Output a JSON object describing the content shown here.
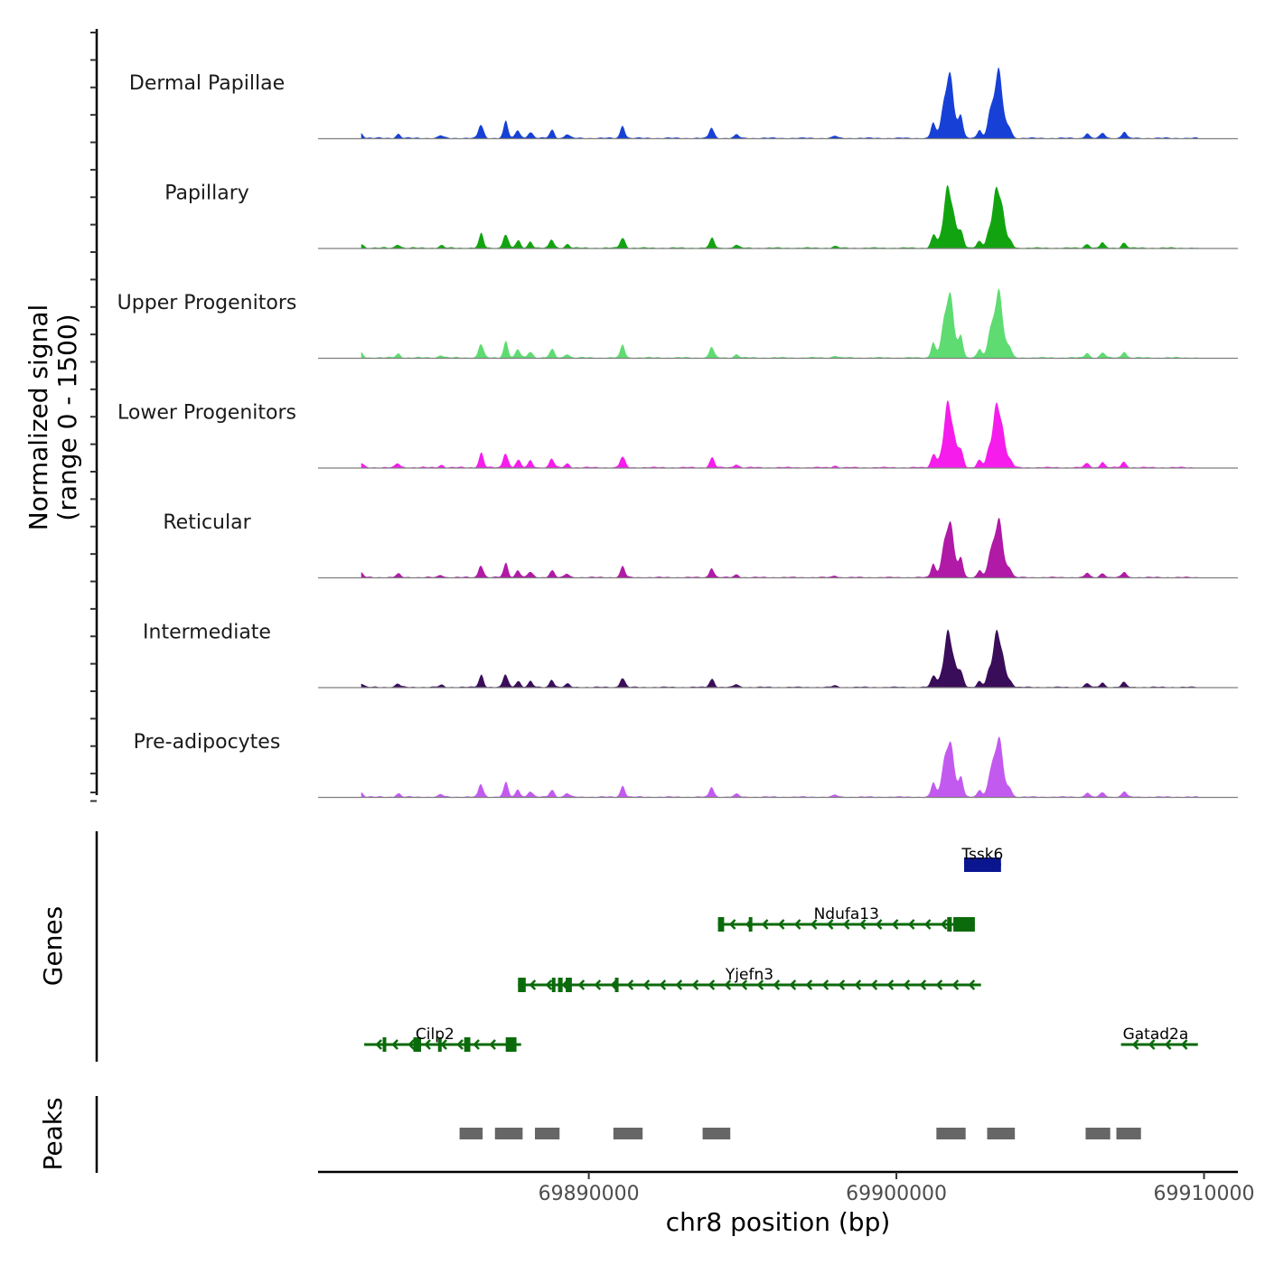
{
  "chart_data": {
    "type": "area",
    "title": "",
    "chromosome": "chr8",
    "xlabel": "chr8 position (bp)",
    "ylabel_line1": "Normalized signal",
    "ylabel_line2": "(range 0 - 1500)",
    "genes_panel_label": "Genes",
    "peaks_panel_label": "Peaks",
    "xlim": [
      69881200,
      69911100
    ],
    "x_ticks": [
      69890000,
      69900000,
      69910000
    ],
    "x_tick_labels": [
      "69890000",
      "69900000",
      "69910000"
    ],
    "ylim": [
      0,
      1500
    ],
    "base_profile": [
      {
        "pos": 69882600,
        "height": 0.07
      },
      {
        "pos": 69883800,
        "height": 0.06
      },
      {
        "pos": 69885200,
        "height": 0.04
      },
      {
        "pos": 69886500,
        "height": 0.22
      },
      {
        "pos": 69887300,
        "height": 0.24
      },
      {
        "pos": 69887700,
        "height": 0.12
      },
      {
        "pos": 69888100,
        "height": 0.1
      },
      {
        "pos": 69888800,
        "height": 0.13
      },
      {
        "pos": 69889300,
        "height": 0.06
      },
      {
        "pos": 69891100,
        "height": 0.18
      },
      {
        "pos": 69894000,
        "height": 0.16
      },
      {
        "pos": 69894800,
        "height": 0.05
      },
      {
        "pos": 69898000,
        "height": 0.03
      },
      {
        "pos": 69901200,
        "height": 0.22
      },
      {
        "pos": 69901700,
        "height": 0.98
      },
      {
        "pos": 69902100,
        "height": 0.28
      },
      {
        "pos": 69902700,
        "height": 0.12
      },
      {
        "pos": 69903000,
        "height": 0.16
      },
      {
        "pos": 69903300,
        "height": 1.0
      },
      {
        "pos": 69903700,
        "height": 0.1
      },
      {
        "pos": 69906200,
        "height": 0.07
      },
      {
        "pos": 69906700,
        "height": 0.08
      },
      {
        "pos": 69907400,
        "height": 0.09
      }
    ],
    "series": [
      {
        "name": "Dermal Papillae",
        "color": "#1741d6",
        "scale": 0.97
      },
      {
        "name": "Papillary",
        "color": "#12a410",
        "scale": 0.92
      },
      {
        "name": "Upper Progenitors",
        "color": "#5edc72",
        "scale": 0.97
      },
      {
        "name": "Lower Progenitors",
        "color": "#f51cec",
        "scale": 0.96
      },
      {
        "name": "Reticular",
        "color": "#b01aa6",
        "scale": 0.85
      },
      {
        "name": "Intermediate",
        "color": "#3a0d5a",
        "scale": 0.82
      },
      {
        "name": "Pre-adipocytes",
        "color": "#c35af0",
        "scale": 0.87
      }
    ],
    "genes": [
      {
        "name": "Tssk6",
        "start": 69902200,
        "end": 69903400,
        "strand": "-",
        "color": "#0a1690",
        "exons": [
          [
            69902200,
            69903400
          ]
        ]
      },
      {
        "name": "Ndufa13",
        "start": 69894200,
        "end": 69902550,
        "strand": "-",
        "color": "#0b6a0b",
        "exons": [
          [
            69894200,
            69894400
          ],
          [
            69895200,
            69895260
          ],
          [
            69901650,
            69901800
          ],
          [
            69901850,
            69902550
          ]
        ]
      },
      {
        "name": "Yjefn3",
        "start": 69887700,
        "end": 69902750,
        "strand": "-",
        "color": "#0b6a0b",
        "exons": [
          [
            69887700,
            69887950
          ],
          [
            69888800,
            69888900
          ],
          [
            69889000,
            69889150
          ],
          [
            69889250,
            69889450
          ],
          [
            69890850,
            69890950
          ]
        ]
      },
      {
        "name": "Cilp2",
        "start": 69882700,
        "end": 69887800,
        "strand": "-",
        "color": "#0b6a0b",
        "exons": [
          [
            69883300,
            69883400
          ],
          [
            69884300,
            69884550
          ],
          [
            69885100,
            69885200
          ],
          [
            69885950,
            69886150
          ],
          [
            69887300,
            69887650
          ]
        ]
      },
      {
        "name": "Gatad2a",
        "start": 69907300,
        "end": 69909800,
        "strand": "-",
        "color": "#0b6a0b",
        "exons": []
      }
    ],
    "peaks": [
      {
        "start": 69885800,
        "end": 69886550
      },
      {
        "start": 69886950,
        "end": 69887850
      },
      {
        "start": 69888250,
        "end": 69889050
      },
      {
        "start": 69890800,
        "end": 69891750
      },
      {
        "start": 69893700,
        "end": 69894600
      },
      {
        "start": 69901300,
        "end": 69902250
      },
      {
        "start": 69902950,
        "end": 69903850
      },
      {
        "start": 69906150,
        "end": 69906950
      },
      {
        "start": 69907150,
        "end": 69907950
      }
    ],
    "peak_color": "#666666"
  }
}
